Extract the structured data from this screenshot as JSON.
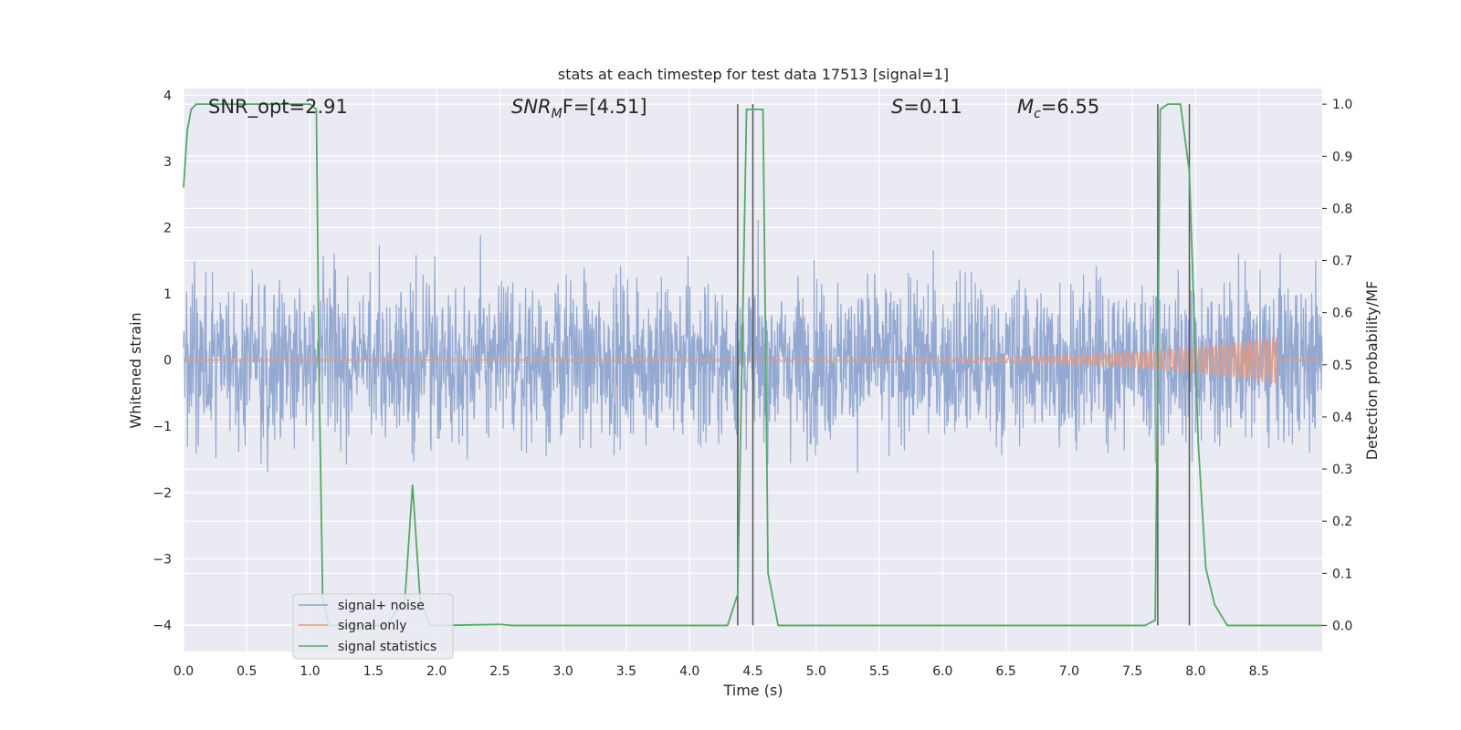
{
  "chart_data": {
    "type": "line",
    "title": "stats at each timestep for test data 17513 [signal=1]",
    "xlabel": "Time (s)",
    "ylabel_left": "Whitened strain",
    "ylabel_right": "Detection probability/MF",
    "xlim": [
      0,
      9
    ],
    "ylim_left": [
      -4.4,
      4.1
    ],
    "ylim_right": [
      -0.05,
      1.03
    ],
    "x_ticks": [
      "0.0",
      "0.5",
      "1.0",
      "1.5",
      "2.0",
      "2.5",
      "3.0",
      "3.5",
      "4.0",
      "4.5",
      "5.0",
      "5.5",
      "6.0",
      "6.5",
      "7.0",
      "7.5",
      "8.0",
      "8.5"
    ],
    "y_left_ticks": [
      "4",
      "3",
      "2",
      "1",
      "0",
      "−1",
      "−2",
      "−3",
      "−4"
    ],
    "y_right_ticks": [
      "1.0",
      "0.9",
      "0.8",
      "0.7",
      "0.6",
      "0.5",
      "0.4",
      "0.3",
      "0.2",
      "0.1",
      "0.0"
    ],
    "grid": true,
    "legend_position": "lower-left",
    "annotations": {
      "snr_opt": "SNR_opt=2.91",
      "snr_mf_prefix": "SNR",
      "snr_mf_sub": "M",
      "snr_mf_suffix": "F=[4.51]",
      "s_label": "S",
      "s_value": "=0.11",
      "mc_label": "M",
      "mc_sub": "c",
      "mc_value": "=6.55"
    },
    "vertical_markers": [
      4.38,
      4.5,
      7.7,
      7.95
    ],
    "series": [
      {
        "name": "signal+ noise",
        "color": "#8fa5cf",
        "axis": "left",
        "description_envelope": [
          -1.7,
          1.7
        ]
      },
      {
        "name": "signal only",
        "color": "#e49a83",
        "axis": "left",
        "chirp_start": 4.3,
        "chirp_end": 8.65,
        "peak_amplitude": 0.35
      },
      {
        "name": "signal statistics",
        "color": "#55a868",
        "axis": "right",
        "x": [
          0,
          0.03,
          0.06,
          0.1,
          0.2,
          0.5,
          1.0,
          1.05,
          1.07,
          1.1,
          1.15,
          1.3,
          1.45,
          1.6,
          1.75,
          1.81,
          1.87,
          1.95,
          2.0,
          2.5,
          2.6,
          3.0,
          4.0,
          4.3,
          4.38,
          4.45,
          4.58,
          4.62,
          4.7,
          5.0,
          6.0,
          7.0,
          7.6,
          7.68,
          7.72,
          7.78,
          7.88,
          7.95,
          8.02,
          8.08,
          8.15,
          8.25,
          8.5,
          9.0
        ],
        "y": [
          0.84,
          0.95,
          0.99,
          1.0,
          1.0,
          1.0,
          1.0,
          0.99,
          0.5,
          0.05,
          0.0,
          0.0,
          0.0,
          0.0,
          0.05,
          0.27,
          0.05,
          0.0,
          0.0,
          0.002,
          0.0,
          0.0,
          0.0,
          0.0,
          0.06,
          0.99,
          0.99,
          0.1,
          0.0,
          0.0,
          0.0,
          0.0,
          0.0,
          0.01,
          0.99,
          1.0,
          1.0,
          0.87,
          0.35,
          0.11,
          0.04,
          0.0,
          0.0,
          0.0
        ]
      }
    ]
  }
}
